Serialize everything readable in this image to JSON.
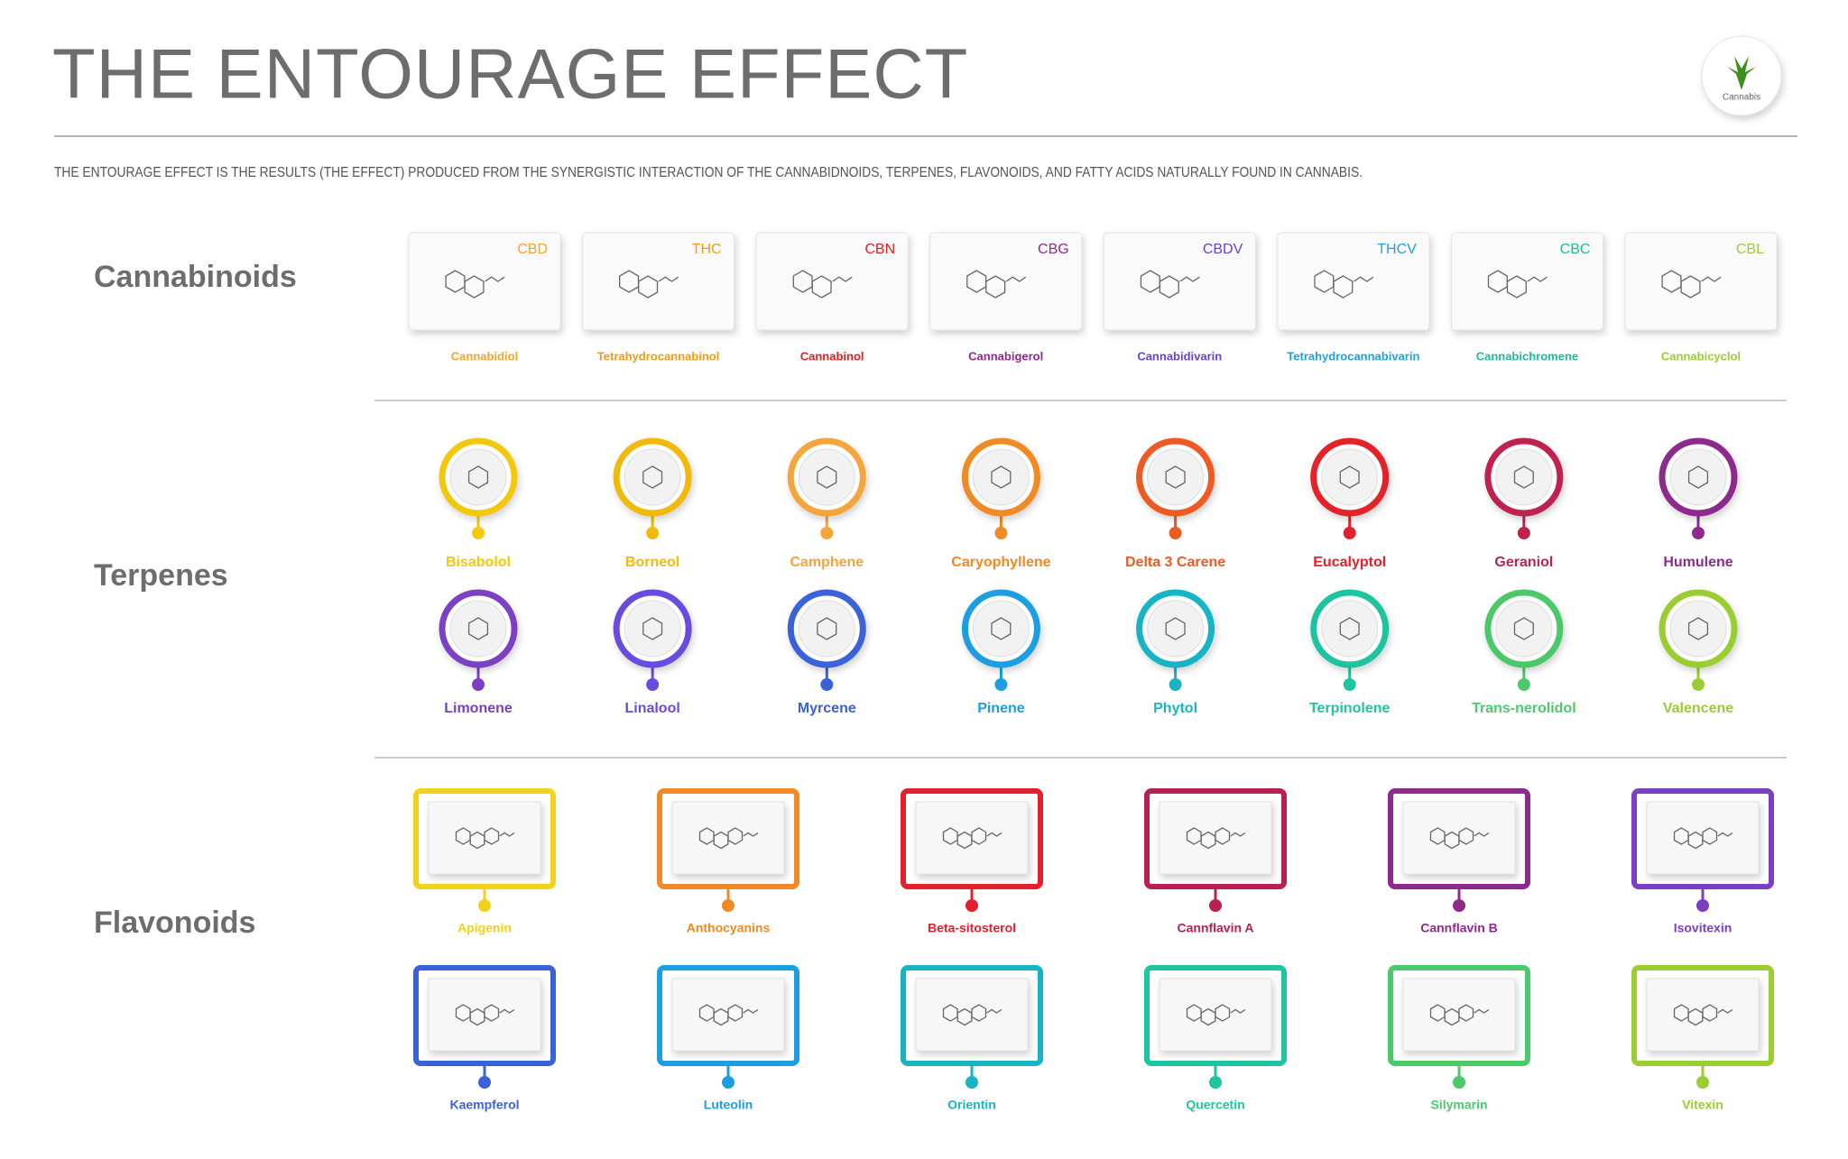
{
  "header": {
    "title": "THE ENTOURAGE EFFECT",
    "subtitle": "THE ENTOURAGE EFFECT IS THE RESULTS (THE EFFECT) PRODUCED FROM THE SYNERGISTIC INTERACTION OF THE CANNABIDNOIDS, TERPENES, FLAVONOIDS, AND FATTY ACIDS NATURALLY FOUND IN CANNABIS."
  },
  "logo": {
    "label": "Cannabis"
  },
  "cannabinoids": {
    "label": "Cannabinoids",
    "items": [
      {
        "abbr": "CBD",
        "name": "Cannabidiol",
        "color": "#f5a623"
      },
      {
        "abbr": "THC",
        "name": "Tetrahydrocannabinol",
        "color": "#f39c12"
      },
      {
        "abbr": "CBN",
        "name": "Cannabinol",
        "color": "#e02020"
      },
      {
        "abbr": "CBG",
        "name": "Cannabigerol",
        "color": "#8e2a8e"
      },
      {
        "abbr": "CBDV",
        "name": "Cannabidivarin",
        "color": "#6a3fd6"
      },
      {
        "abbr": "THCV",
        "name": "Tetrahydrocannabivarin",
        "color": "#1da1e0"
      },
      {
        "abbr": "CBC",
        "name": "Cannabichromene",
        "color": "#1abc9c"
      },
      {
        "abbr": "CBL",
        "name": "Cannabicyclol",
        "color": "#9acd32"
      }
    ]
  },
  "terpenes": {
    "label": "Terpenes",
    "rows": [
      [
        {
          "name": "Bisabolol",
          "color": "#f2c811"
        },
        {
          "name": "Borneol",
          "color": "#f2b90f"
        },
        {
          "name": "Camphene",
          "color": "#f4a53a"
        },
        {
          "name": "Caryophyllene",
          "color": "#f08a24"
        },
        {
          "name": "Delta 3 Carene",
          "color": "#ee5a24"
        },
        {
          "name": "Eucalyptol",
          "color": "#e3202b"
        },
        {
          "name": "Geraniol",
          "color": "#c0224f"
        },
        {
          "name": "Humulene",
          "color": "#8e2a8e"
        }
      ],
      [
        {
          "name": "Limonene",
          "color": "#7b3fc4"
        },
        {
          "name": "Linalool",
          "color": "#6a4be0"
        },
        {
          "name": "Myrcene",
          "color": "#3a62d8"
        },
        {
          "name": "Pinene",
          "color": "#1e9ee0"
        },
        {
          "name": "Phytol",
          "color": "#19b4c4"
        },
        {
          "name": "Terpinolene",
          "color": "#1fc4a0"
        },
        {
          "name": "Trans-nerolidol",
          "color": "#4cc96a"
        },
        {
          "name": "Valencene",
          "color": "#9acd32"
        }
      ]
    ]
  },
  "flavonoids": {
    "label": "Flavonoids",
    "rows": [
      [
        {
          "name": "Apigenin",
          "color": "#f2d21a"
        },
        {
          "name": "Anthocyanins",
          "color": "#f08a24"
        },
        {
          "name": "Beta-sitosterol",
          "color": "#e3202b"
        },
        {
          "name": "Cannflavin A",
          "color": "#b8204f"
        },
        {
          "name": "Cannflavin B",
          "color": "#8e2a8e"
        },
        {
          "name": "Isovitexin",
          "color": "#7b3fc4"
        }
      ],
      [
        {
          "name": "Kaempferol",
          "color": "#3a62d8"
        },
        {
          "name": "Luteolin",
          "color": "#1e9ee0"
        },
        {
          "name": "Orientin",
          "color": "#19b4c4"
        },
        {
          "name": "Quercetin",
          "color": "#1fc4a0"
        },
        {
          "name": "Silymarin",
          "color": "#4cc96a"
        },
        {
          "name": "Vitexin",
          "color": "#9acd32"
        }
      ]
    ]
  }
}
